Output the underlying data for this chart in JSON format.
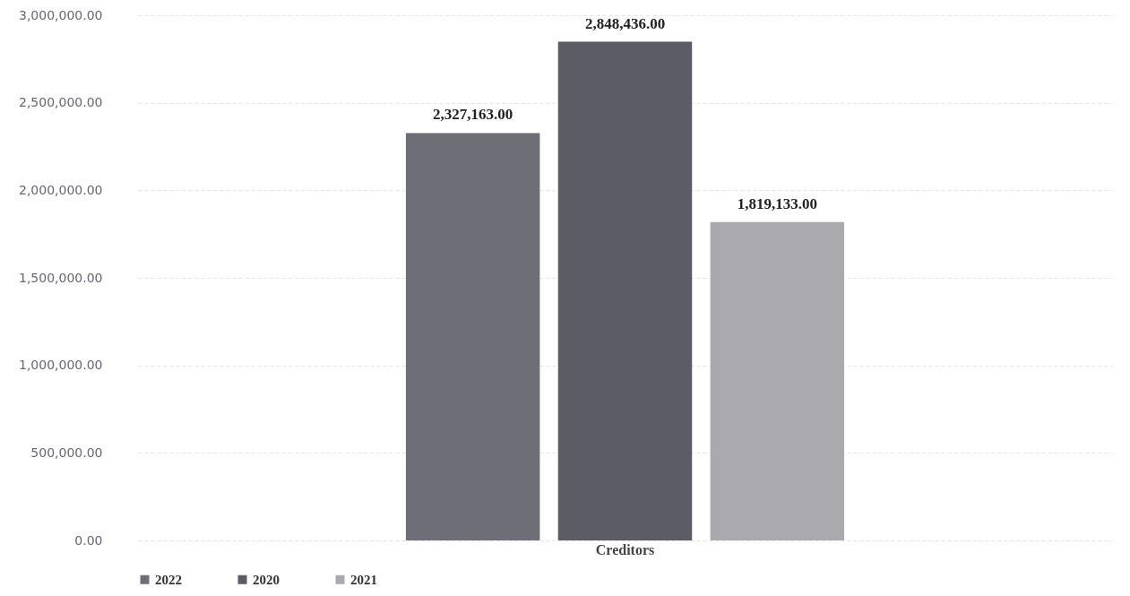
{
  "chart_data": {
    "type": "bar",
    "categories": [
      "Creditors"
    ],
    "series": [
      {
        "name": "2022",
        "color": "#6e6e76",
        "values": [
          2327163
        ],
        "value_labels": [
          "2,327,163.00"
        ]
      },
      {
        "name": "2020",
        "color": "#5c5c64",
        "values": [
          2848436
        ],
        "value_labels": [
          "2,848,436.00"
        ]
      },
      {
        "name": "2021",
        "color": "#aaaaae",
        "values": [
          1819133
        ],
        "value_labels": [
          "1,819,133.00"
        ]
      }
    ],
    "ylim": [
      0,
      3000000
    ],
    "yticks": [
      {
        "value": 0,
        "label": "0.00"
      },
      {
        "value": 500000,
        "label": "500,000.00"
      },
      {
        "value": 1000000,
        "label": "1,000,000.00"
      },
      {
        "value": 1500000,
        "label": "1,500,000.00"
      },
      {
        "value": 2000000,
        "label": "2,000,000.00"
      },
      {
        "value": 2500000,
        "label": "2,500,000.00"
      },
      {
        "value": 3000000,
        "label": "3,000,000.00"
      }
    ],
    "grid": "y",
    "legend": "bottom"
  }
}
